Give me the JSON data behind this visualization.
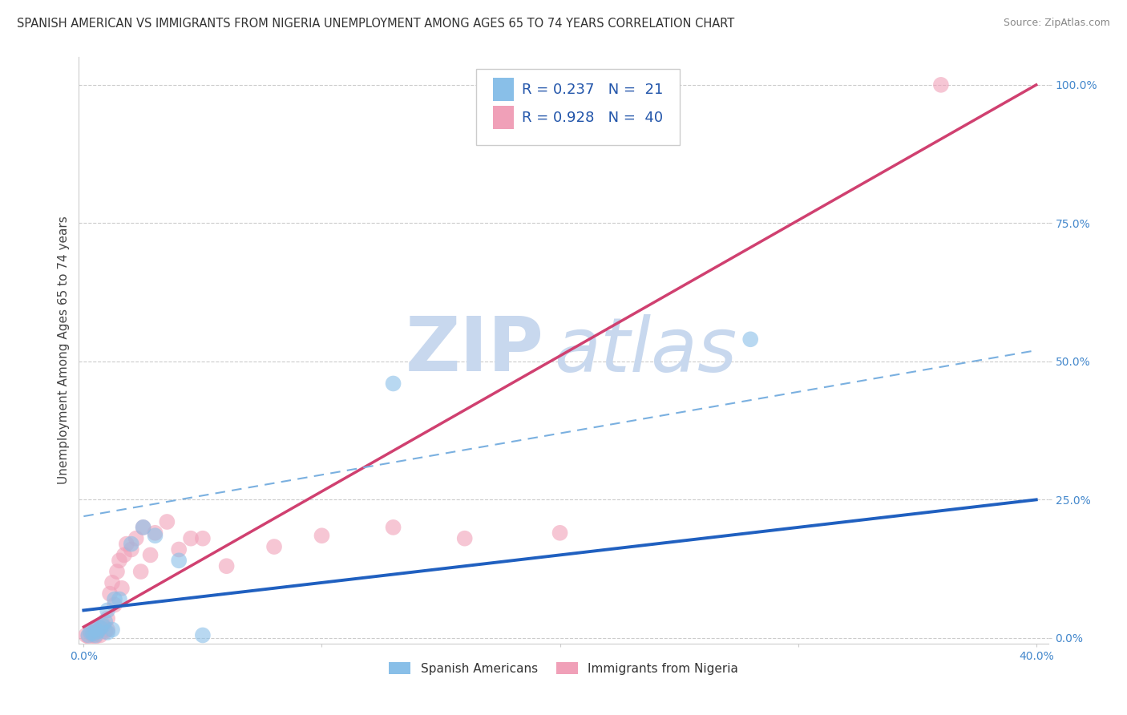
{
  "title": "SPANISH AMERICAN VS IMMIGRANTS FROM NIGERIA UNEMPLOYMENT AMONG AGES 65 TO 74 YEARS CORRELATION CHART",
  "source": "Source: ZipAtlas.com",
  "ylabel": "Unemployment Among Ages 65 to 74 years",
  "xlim": [
    -0.002,
    0.405
  ],
  "ylim": [
    -0.01,
    1.05
  ],
  "xticks": [
    0.0,
    0.1,
    0.2,
    0.3,
    0.4
  ],
  "xtick_labels": [
    "0.0%",
    "",
    "",
    "",
    "40.0%"
  ],
  "yticks": [
    0.0,
    0.25,
    0.5,
    0.75,
    1.0
  ],
  "ytick_labels": [
    "0.0%",
    "25.0%",
    "50.0%",
    "75.0%",
    "100.0%"
  ],
  "watermark_zip": "ZIP",
  "watermark_atlas": "atlas",
  "legend_r1": "R = 0.237",
  "legend_n1": "N =  21",
  "legend_r2": "R = 0.928",
  "legend_n2": "N =  40",
  "legend_label_spanish": "Spanish Americans",
  "legend_label_nigeria": "Immigrants from Nigeria",
  "blue_scatter_x": [
    0.002,
    0.003,
    0.004,
    0.005,
    0.005,
    0.006,
    0.007,
    0.008,
    0.009,
    0.01,
    0.01,
    0.012,
    0.013,
    0.015,
    0.02,
    0.025,
    0.03,
    0.04,
    0.05,
    0.13,
    0.28
  ],
  "blue_scatter_y": [
    0.005,
    0.01,
    0.008,
    0.015,
    0.005,
    0.012,
    0.018,
    0.022,
    0.03,
    0.05,
    0.01,
    0.015,
    0.07,
    0.07,
    0.17,
    0.2,
    0.185,
    0.14,
    0.005,
    0.46,
    0.54
  ],
  "pink_scatter_x": [
    0.001,
    0.002,
    0.003,
    0.004,
    0.004,
    0.005,
    0.005,
    0.006,
    0.006,
    0.007,
    0.007,
    0.008,
    0.009,
    0.01,
    0.01,
    0.011,
    0.012,
    0.013,
    0.014,
    0.015,
    0.016,
    0.017,
    0.018,
    0.02,
    0.022,
    0.024,
    0.025,
    0.028,
    0.03,
    0.035,
    0.04,
    0.045,
    0.05,
    0.06,
    0.08,
    0.1,
    0.13,
    0.16,
    0.2,
    0.36
  ],
  "pink_scatter_y": [
    0.005,
    0.003,
    0.008,
    0.01,
    0.005,
    0.003,
    0.015,
    0.012,
    0.02,
    0.005,
    0.018,
    0.025,
    0.012,
    0.015,
    0.035,
    0.08,
    0.1,
    0.06,
    0.12,
    0.14,
    0.09,
    0.15,
    0.17,
    0.16,
    0.18,
    0.12,
    0.2,
    0.15,
    0.19,
    0.21,
    0.16,
    0.18,
    0.18,
    0.13,
    0.165,
    0.185,
    0.2,
    0.18,
    0.19,
    1.0
  ],
  "blue_line_x": [
    0.0,
    0.4
  ],
  "blue_line_y": [
    0.05,
    0.25
  ],
  "dashed_line_x": [
    0.0,
    0.4
  ],
  "dashed_line_y": [
    0.22,
    0.52
  ],
  "pink_line_x": [
    0.0,
    0.4
  ],
  "pink_line_y": [
    0.02,
    1.0
  ],
  "scatter_color_blue": "#89bfe8",
  "scatter_color_pink": "#f0a0b8",
  "line_color_blue": "#2060c0",
  "line_color_dashed": "#7ab0e0",
  "line_color_pink": "#d04070",
  "grid_color": "#cccccc",
  "background_color": "#ffffff",
  "title_fontsize": 10.5,
  "axis_label_fontsize": 11,
  "tick_fontsize": 10,
  "tick_color_blue": "#4488cc",
  "watermark_color_zip": "#c8d8ee",
  "watermark_color_atlas": "#c8d8ee",
  "watermark_fontsize": 68
}
